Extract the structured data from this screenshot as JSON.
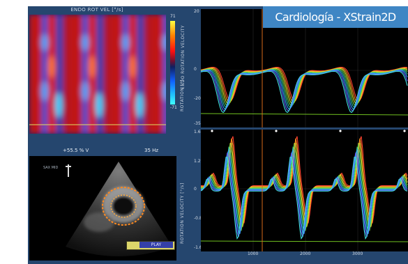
{
  "banner": {
    "text": "Cardiología - XStrain2D"
  },
  "heatmap": {
    "title": "ENDO ROT VEL [°/s]",
    "colorbar_max": "71",
    "colorbar_min": "-71",
    "side_label": "ENDO ROTATION VELOCITY"
  },
  "echo": {
    "header_left": "+55.5 % V",
    "header_right": "35 Hz",
    "caption_left": "SAX MID",
    "tag": "PLAY"
  },
  "plots": {
    "top": {
      "side_label": "ROTATION [°]",
      "yticks": [
        "20",
        "0",
        "-20",
        "-35"
      ]
    },
    "bottom": {
      "side_label": "ROTATION VELOCITY [°/s]",
      "yticks": [
        "1.6",
        "1.2",
        "0",
        "-0.8",
        "-1.6"
      ]
    },
    "xticks": [
      "1000",
      "2000",
      "3000"
    ]
  },
  "colors": {
    "app_bg": "#25466e",
    "banner_bg": "#3f86c4",
    "cursor": "#d86a18"
  }
}
